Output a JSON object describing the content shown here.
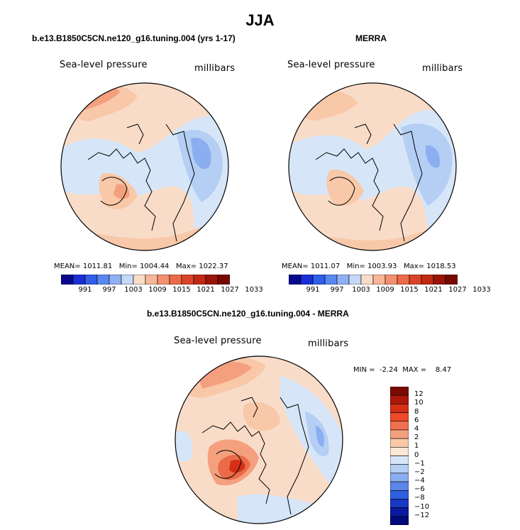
{
  "title": "JJA",
  "panels": [
    {
      "title": "b.e13.B1850C5CN.ne120_g16.tuning.004 (yrs 1-17)",
      "variable": "Sea-level pressure",
      "units": "millibars",
      "stats": {
        "mean_label": "MEAN=",
        "mean": "1011.81",
        "min_label": "Min=",
        "min": "1004.44",
        "max_label": "Max=",
        "max": "1022.37"
      }
    },
    {
      "title": "MERRA",
      "variable": "Sea-level pressure",
      "units": "millibars",
      "stats": {
        "mean_label": "MEAN=",
        "mean": "1011.07",
        "min_label": "Min=",
        "min": "1003.93",
        "max_label": "Max=",
        "max": "1018.53"
      }
    },
    {
      "title": "b.e13.B1850C5CN.ne120_g16.tuning.004 - MERRA",
      "variable": "Sea-level pressure",
      "units": "millibars",
      "stats": {
        "min_label": "MIN =",
        "min": "-2.24",
        "max_label": "MAX =",
        "max": "8.47"
      }
    }
  ],
  "colorbar_abs": {
    "labels": [
      "991",
      "997",
      "1003",
      "1009",
      "1015",
      "1021",
      "1027",
      "1033"
    ],
    "colors": [
      "#08088f",
      "#1a2fd6",
      "#2f5ee8",
      "#5a87f0",
      "#8fb0f2",
      "#c4d8f7",
      "#f9dcc8",
      "#f8b898",
      "#f49070",
      "#ec6a48",
      "#da4528",
      "#c02a14",
      "#9a1408",
      "#760800"
    ]
  },
  "colorbar_diff": {
    "labels": [
      "12",
      "10",
      "8",
      "6",
      "4",
      "2",
      "1",
      "0",
      "−1",
      "−2",
      "−4",
      "−6",
      "−8",
      "−10",
      "−12"
    ],
    "colors": [
      "#7a0a00",
      "#aa1808",
      "#d43018",
      "#ec4a28",
      "#f07050",
      "#f4a07e",
      "#f8c8a8",
      "#fce6d6",
      "#d6e6f8",
      "#b4cef4",
      "#8aaef0",
      "#5c86ea",
      "#3060e0",
      "#1838c4",
      "#0a1aa0",
      "#000a78"
    ]
  },
  "map_colors": {
    "ocean_base": "#f9dcc8",
    "light_blue": "#d6e6f8",
    "mid_blue": "#b4cef4",
    "blue": "#8aaef0",
    "light_orange": "#f8c8a8",
    "orange": "#f4a07e",
    "red_orange": "#ec6a48",
    "red": "#d43018"
  }
}
